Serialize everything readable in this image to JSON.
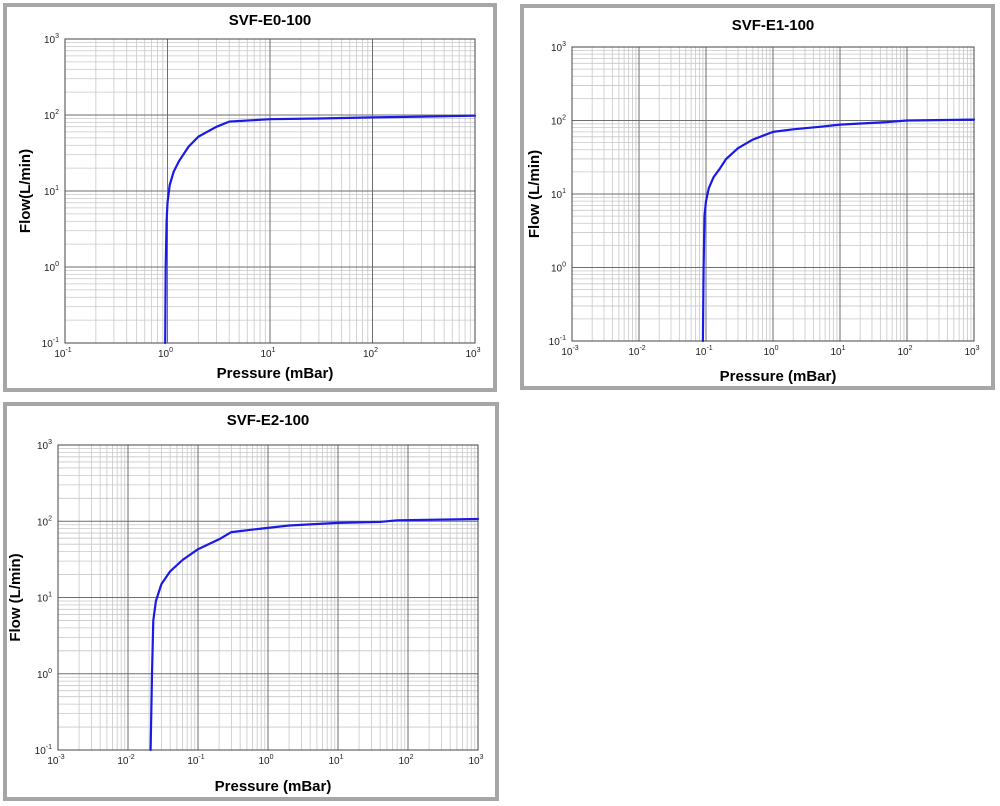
{
  "colors": {
    "line": "#1a1ae6",
    "grid_minor": "#c8c8c8",
    "grid_major": "#6e6e6e",
    "frame": "#a6a6a6"
  },
  "chart_data": [
    {
      "type": "line",
      "title": "SVF-E0-100",
      "xlabel": "Pressure (mBar)",
      "ylabel": "Flow(L/min)",
      "xscale": "log",
      "yscale": "log",
      "xlim": [
        0.1,
        1000
      ],
      "ylim": [
        0.1,
        1000
      ],
      "xtick_exponents": [
        -1,
        0,
        1,
        2,
        3
      ],
      "ytick_exponents": [
        -1,
        0,
        1,
        2,
        3
      ],
      "grid": true,
      "series": [
        {
          "x": [
            0.95,
            0.96,
            0.98,
            1.0,
            1.05,
            1.15,
            1.3,
            1.6,
            2.0,
            3.0,
            4.0,
            10,
            30,
            100,
            300,
            1000
          ],
          "y": [
            0.1,
            1.0,
            4.0,
            7.0,
            12,
            18,
            25,
            38,
            52,
            70,
            82,
            88,
            90,
            93,
            95,
            98
          ]
        }
      ]
    },
    {
      "type": "line",
      "title": "SVF-E1-100",
      "xlabel": "Pressure (mBar)",
      "ylabel": "Flow (L/min)",
      "xscale": "log",
      "yscale": "log",
      "xlim": [
        0.001,
        1000
      ],
      "ylim": [
        0.1,
        1000
      ],
      "xtick_exponents": [
        -3,
        -2,
        -1,
        0,
        1,
        2,
        3
      ],
      "ytick_exponents": [
        -1,
        0,
        1,
        2,
        3
      ],
      "grid": true,
      "series": [
        {
          "x": [
            0.09,
            0.092,
            0.095,
            0.1,
            0.11,
            0.13,
            0.16,
            0.2,
            0.3,
            0.5,
            1.0,
            2.0,
            5,
            10,
            50,
            100,
            1000
          ],
          "y": [
            0.1,
            1.0,
            5.0,
            8.0,
            12,
            17,
            22,
            30,
            42,
            55,
            70,
            76,
            82,
            88,
            95,
            100,
            103
          ]
        }
      ]
    },
    {
      "type": "line",
      "title": "SVF-E2-100",
      "xlabel": "Pressure (mBar)",
      "ylabel": "Flow (L/min)",
      "xscale": "log",
      "yscale": "log",
      "xlim": [
        0.001,
        1000
      ],
      "ylim": [
        0.1,
        1000
      ],
      "xtick_exponents": [
        -3,
        -2,
        -1,
        0,
        1,
        2,
        3
      ],
      "ytick_exponents": [
        -1,
        0,
        1,
        2,
        3
      ],
      "grid": true,
      "series": [
        {
          "x": [
            0.021,
            0.022,
            0.023,
            0.025,
            0.03,
            0.04,
            0.06,
            0.1,
            0.2,
            0.3,
            0.8,
            2,
            10,
            40,
            70,
            1000
          ],
          "y": [
            0.1,
            1.0,
            5.0,
            9.0,
            15,
            22,
            31,
            43,
            58,
            72,
            80,
            88,
            95,
            98,
            103,
            107
          ]
        }
      ]
    }
  ]
}
